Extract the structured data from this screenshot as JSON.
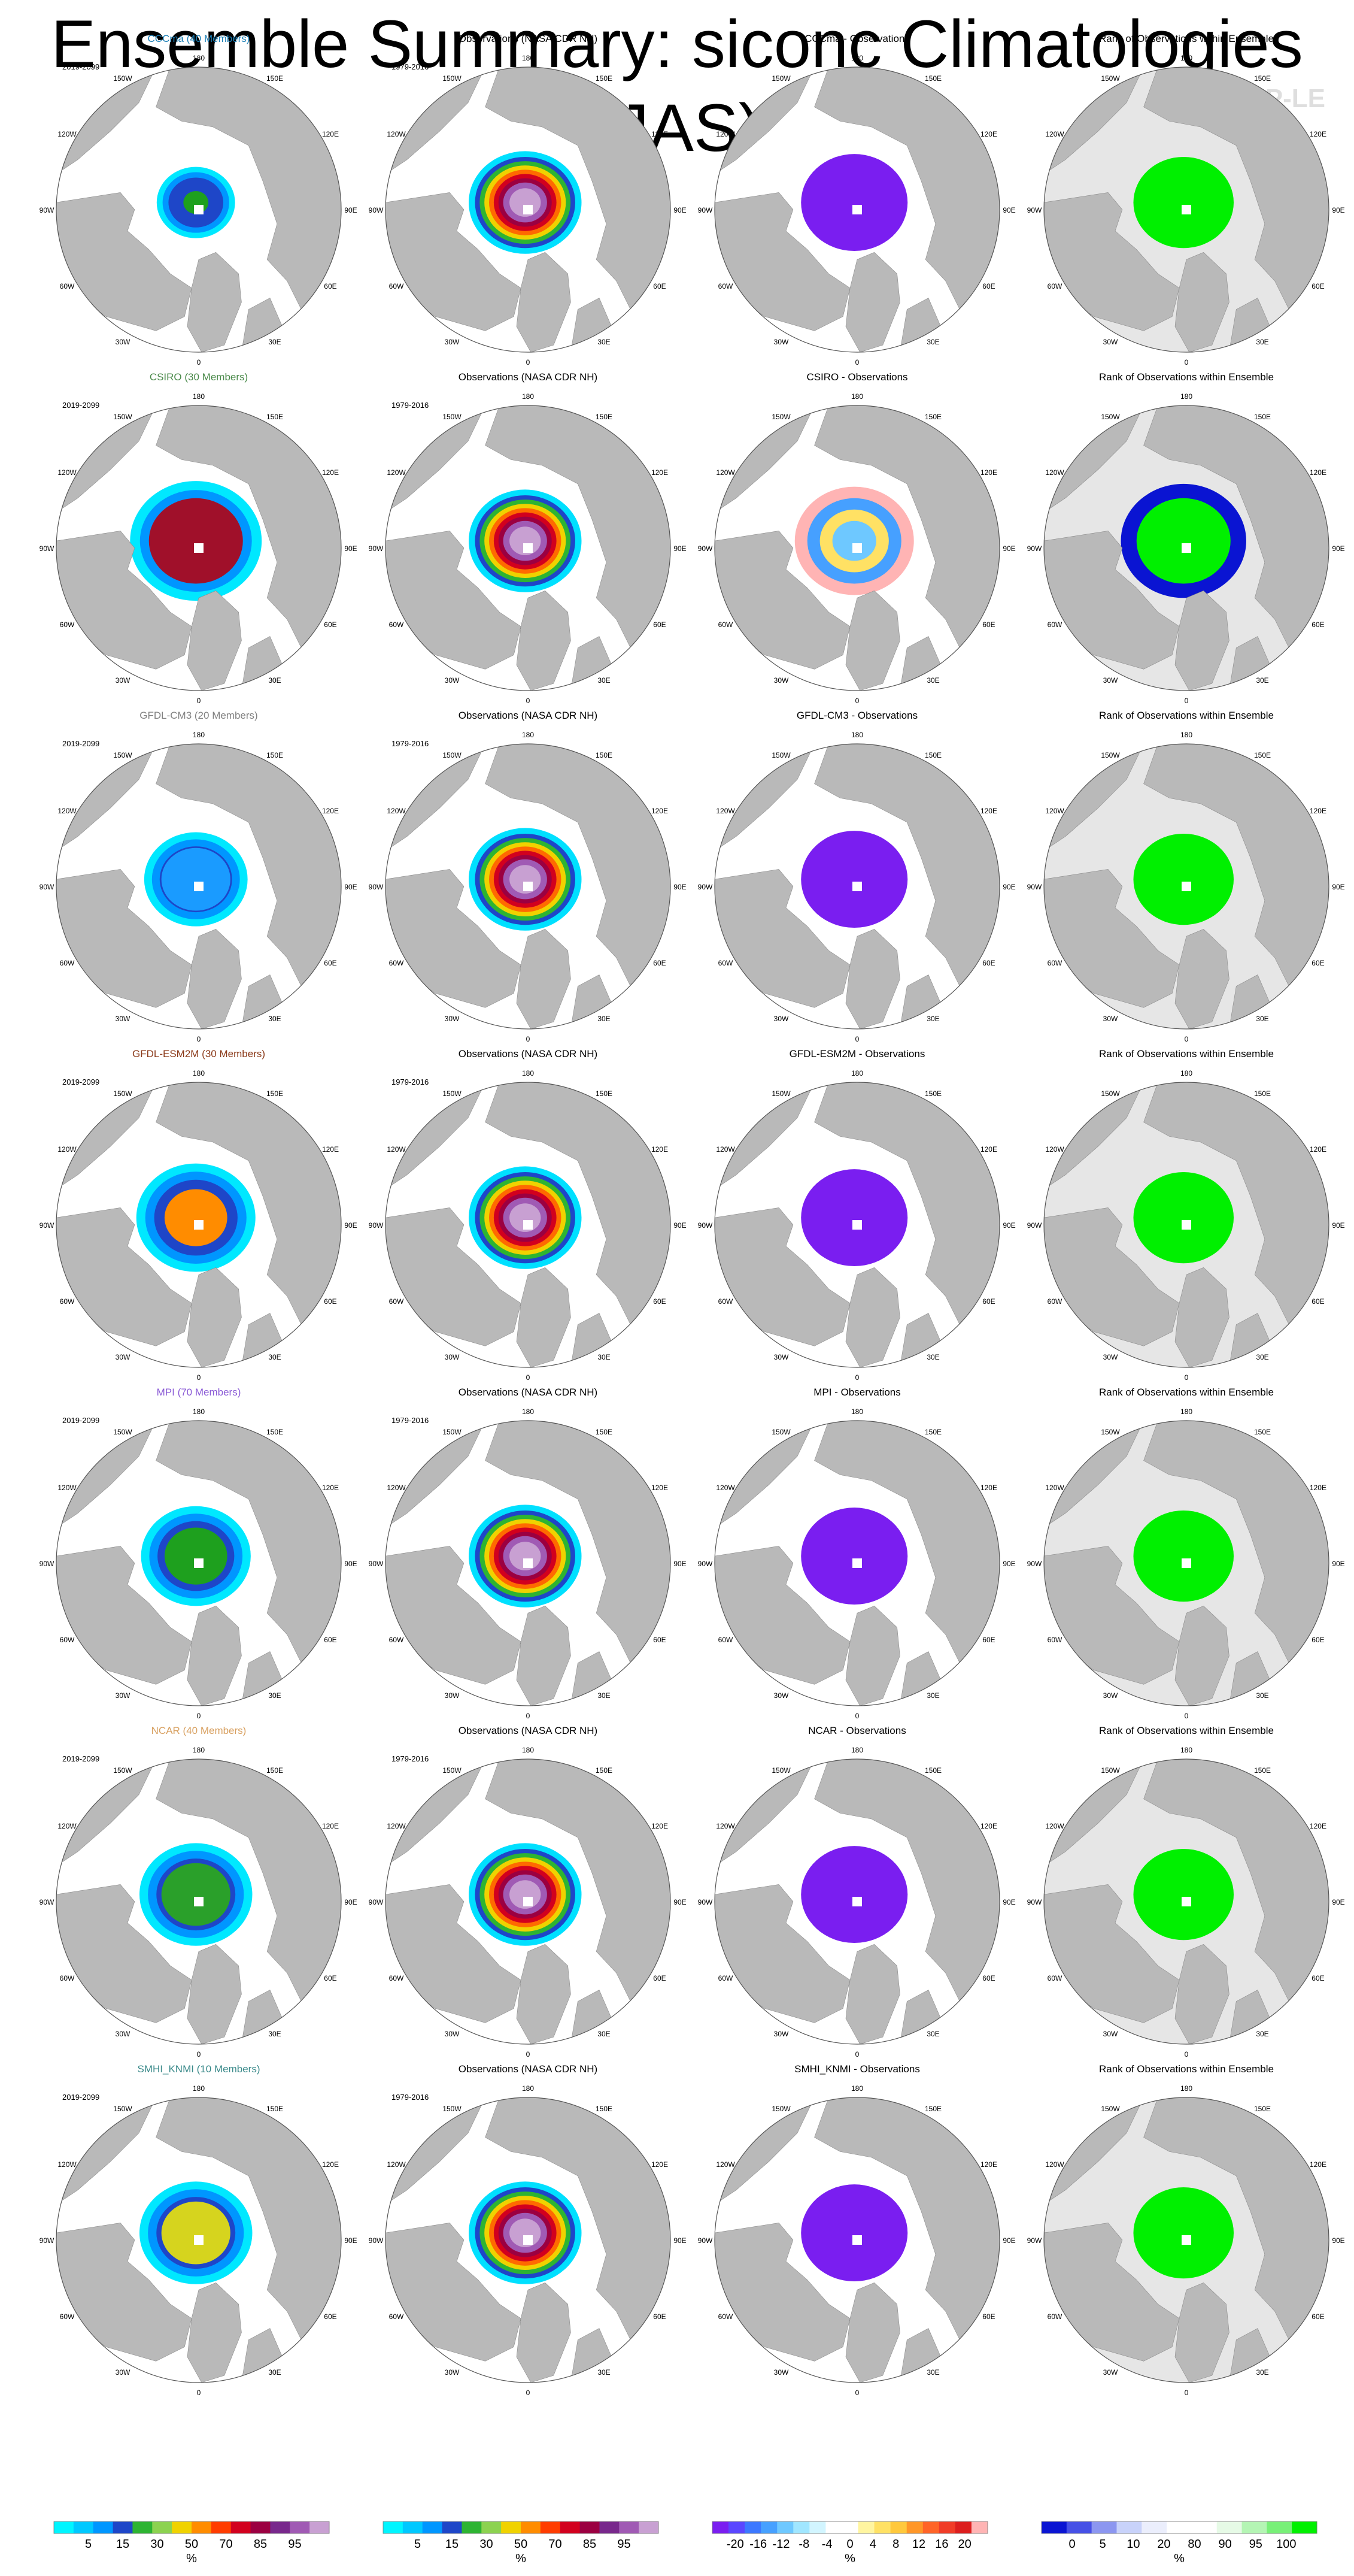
{
  "title": "Ensemble Summary: siconc Climatologies (JAS)",
  "watermark": "© CVDP-LE",
  "colors": {
    "land": "#b9b9b9",
    "rank_background": "#e6e6e6",
    "CCCma": "#1a7fb6",
    "CSIRO": "#4a8a4a",
    "GFDL-CM3": "#808080",
    "GFDL-ESM2M": "#8b3a1a",
    "MPI": "#8a5ad6",
    "NCAR": "#d8a060",
    "SMHI_KNMI": "#3a8a8a"
  },
  "map_labels": {
    "longitudes": [
      "180",
      "150E",
      "120E",
      "90E",
      "60E",
      "30E",
      "0",
      "30W",
      "60W",
      "90W",
      "120W",
      "150W"
    ]
  },
  "chart_data": {
    "type": "heatmap",
    "variable": "siconc",
    "season": "JAS",
    "projection": "north-polar-stereographic",
    "column_titles": [
      "Observations (NASA CDR NH)",
      "Rank of Observations within Ensemble"
    ],
    "obs_period": "1979-2016",
    "rows": [
      {
        "model": "CCCma",
        "title": "CCCma (40 Members)",
        "period": "2019-2099",
        "diff_title": "CCCma - Observations",
        "model_ice": {
          "radius": 0.25,
          "core": 0.08,
          "core_color": "#1ea01e"
        },
        "diff_pattern": "negative",
        "rank_pattern": "green"
      },
      {
        "model": "CSIRO",
        "title": "CSIRO (30 Members)",
        "period": "2019-2099",
        "diff_title": "CSIRO - Observations",
        "model_ice": {
          "radius": 0.42,
          "core": 0.3,
          "core_color": "#a0102a"
        },
        "diff_pattern": "mixed",
        "rank_pattern": "green-blue"
      },
      {
        "model": "GFDL-CM3",
        "title": "GFDL-CM3 (20 Members)",
        "period": "2019-2099",
        "diff_title": "GFDL-CM3 - Observations",
        "model_ice": {
          "radius": 0.33,
          "core": 0.22,
          "core_color": "#1a9bff"
        },
        "diff_pattern": "negative",
        "rank_pattern": "green"
      },
      {
        "model": "GFDL-ESM2M",
        "title": "GFDL-ESM2M (30 Members)",
        "period": "2019-2099",
        "diff_title": "GFDL-ESM2M - Observations",
        "model_ice": {
          "radius": 0.38,
          "core": 0.2,
          "core_color": "#ff8c00"
        },
        "diff_pattern": "negative",
        "rank_pattern": "green"
      },
      {
        "model": "MPI",
        "title": "MPI (70 Members)",
        "period": "2019-2099",
        "diff_title": "MPI - Observations",
        "model_ice": {
          "radius": 0.35,
          "core": 0.2,
          "core_color": "#1ea01e"
        },
        "diff_pattern": "negative",
        "rank_pattern": "green"
      },
      {
        "model": "NCAR",
        "title": "NCAR (40 Members)",
        "period": "2019-2099",
        "diff_title": "NCAR - Observations",
        "model_ice": {
          "radius": 0.36,
          "core": 0.22,
          "core_color": "#2aa02a"
        },
        "diff_pattern": "negative",
        "rank_pattern": "green"
      },
      {
        "model": "SMHI_KNMI",
        "title": "SMHI_KNMI (10 Members)",
        "period": "2019-2099",
        "diff_title": "SMHI_KNMI - Observations",
        "model_ice": {
          "radius": 0.36,
          "core": 0.22,
          "core_color": "#d6d41e"
        },
        "diff_pattern": "negative",
        "rank_pattern": "green"
      }
    ],
    "colorbars": [
      {
        "name": "concentration",
        "unit": "%",
        "colors": [
          "#00f5ff",
          "#00c8ff",
          "#0096ff",
          "#1e46c8",
          "#2db432",
          "#8cd250",
          "#f0d200",
          "#ff8c00",
          "#ff3c00",
          "#d2001e",
          "#9b0041",
          "#78288c",
          "#a05ab4",
          "#c8a0d2"
        ],
        "ticks": [
          "5",
          "15",
          "30",
          "50",
          "70",
          "85",
          "95"
        ]
      },
      {
        "name": "concentration",
        "unit": "%",
        "colors": [
          "#00f5ff",
          "#00c8ff",
          "#0096ff",
          "#1e46c8",
          "#2db432",
          "#8cd250",
          "#f0d200",
          "#ff8c00",
          "#ff3c00",
          "#d2001e",
          "#9b0041",
          "#78288c",
          "#a05ab4",
          "#c8a0d2"
        ],
        "ticks": [
          "5",
          "15",
          "30",
          "50",
          "70",
          "85",
          "95"
        ]
      },
      {
        "name": "difference",
        "unit": "%",
        "colors": [
          "#7a1ef0",
          "#5a46ff",
          "#3c78ff",
          "#46a0ff",
          "#6ec8ff",
          "#a0e6ff",
          "#d2f5ff",
          "#ffffff",
          "#ffffff",
          "#fff5a0",
          "#ffe164",
          "#ffc83c",
          "#ff9628",
          "#ff6428",
          "#f03c28",
          "#dc1e1e",
          "#ffb4b4"
        ],
        "ticks": [
          "-20",
          "-16",
          "-12",
          "-8",
          "-4",
          "0",
          "4",
          "8",
          "12",
          "16",
          "20"
        ]
      },
      {
        "name": "rank",
        "unit": "%",
        "colors": [
          "#0a14d2",
          "#4650e6",
          "#8c96f0",
          "#c8d2fa",
          "#ebeefc",
          "#ffffff",
          "#ffffff",
          "#e6fae6",
          "#b4f5b4",
          "#78f078",
          "#00f000"
        ],
        "ticks": [
          "0",
          "5",
          "10",
          "20",
          "80",
          "90",
          "95",
          "100"
        ]
      }
    ]
  }
}
